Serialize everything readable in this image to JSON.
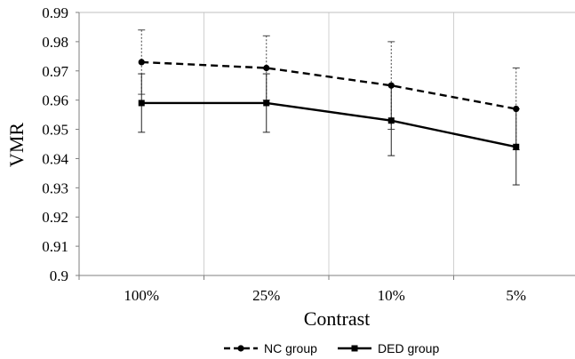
{
  "chart_data": {
    "type": "line",
    "categories": [
      "100%",
      "25%",
      "10%",
      "5%"
    ],
    "xlabel": "Contrast",
    "ylabel": "VMR",
    "ylim": [
      0.9,
      0.99
    ],
    "yticks": [
      "0.9",
      "0.91",
      "0.92",
      "0.93",
      "0.94",
      "0.95",
      "0.96",
      "0.97",
      "0.98",
      "0.99"
    ],
    "grid": "vertical",
    "legend_position": "bottom",
    "series": [
      {
        "name": "NC group",
        "values": [
          0.973,
          0.971,
          0.965,
          0.957
        ],
        "error_upper": [
          0.984,
          0.982,
          0.98,
          0.971
        ],
        "error_lower": [
          0.962,
          0.96,
          0.95,
          0.943
        ],
        "line_style": "dashed",
        "marker": "circle",
        "color": "#000000"
      },
      {
        "name": "DED group",
        "values": [
          0.959,
          0.959,
          0.953,
          0.944
        ],
        "error_upper": [
          0.969,
          0.969,
          0.965,
          0.957
        ],
        "error_lower": [
          0.949,
          0.949,
          0.941,
          0.931
        ],
        "line_style": "solid",
        "marker": "square",
        "color": "#000000"
      }
    ]
  }
}
